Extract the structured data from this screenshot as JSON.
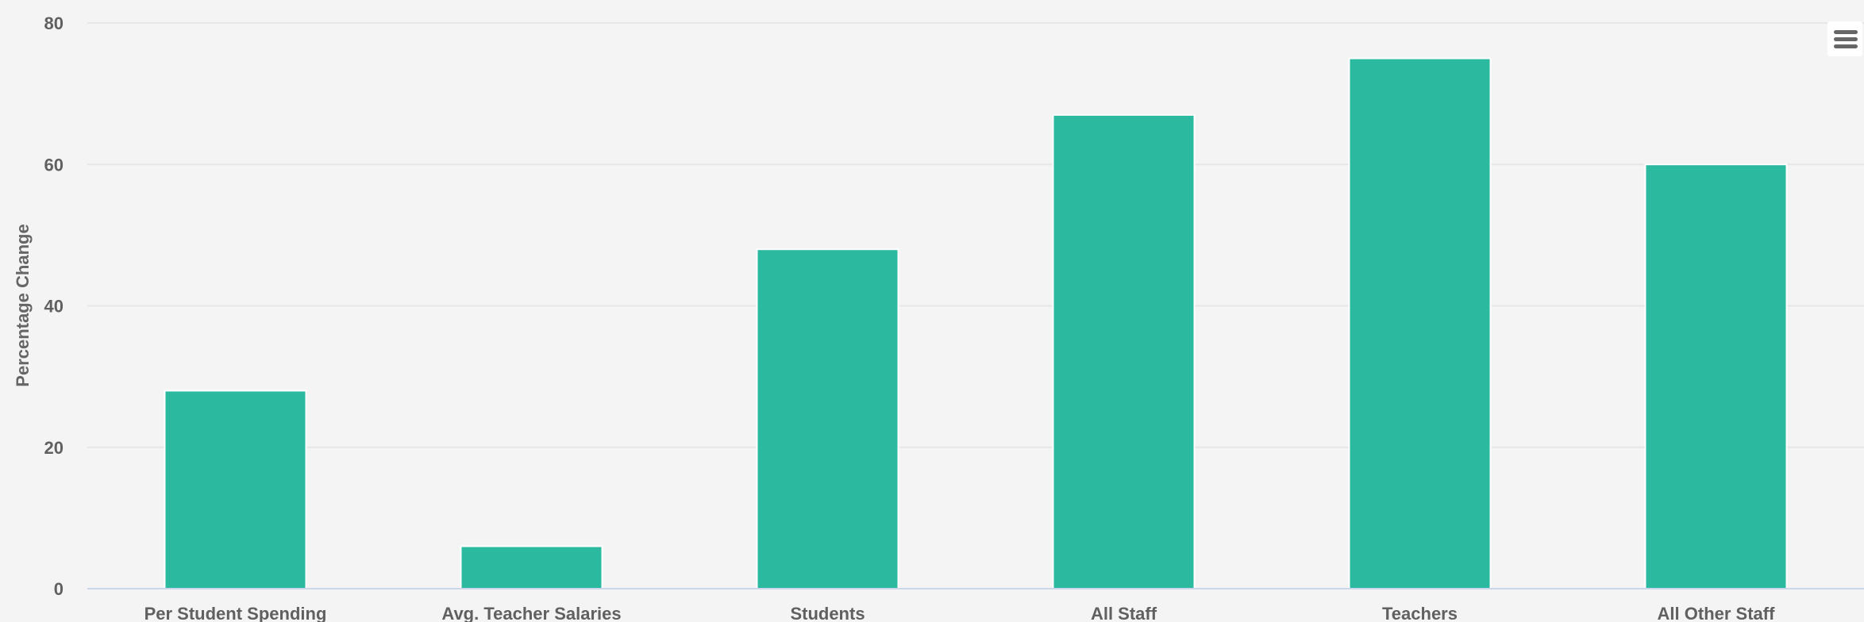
{
  "chart_data": {
    "type": "bar",
    "title": "",
    "xlabel": "",
    "ylabel": "Percentage Change",
    "ylim": [
      0,
      80
    ],
    "yticks": [
      0,
      20,
      40,
      60,
      80
    ],
    "grid": true,
    "categories": [
      "Per Student Spending",
      "Avg. Teacher Salaries",
      "Students",
      "All Staff",
      "Teachers",
      "All Other Staff"
    ],
    "values": [
      28,
      6,
      48,
      67,
      75,
      60
    ],
    "bar_color": "#2bb9a0",
    "grid_color": "#e6e6e6",
    "axis_color": "#ccd6eb"
  },
  "toolbar": {
    "menu_icon": "hamburger-menu-icon"
  }
}
